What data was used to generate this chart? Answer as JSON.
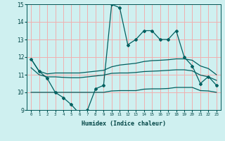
{
  "title": "",
  "xlabel": "Humidex (Indice chaleur)",
  "xlim": [
    -0.5,
    23.5
  ],
  "ylim": [
    9,
    15
  ],
  "yticks": [
    9,
    10,
    11,
    12,
    13,
    14,
    15
  ],
  "xticks": [
    0,
    1,
    2,
    3,
    4,
    5,
    6,
    7,
    8,
    9,
    10,
    11,
    12,
    13,
    14,
    15,
    16,
    17,
    18,
    19,
    20,
    21,
    22,
    23
  ],
  "xtick_labels": [
    "0",
    "1",
    "2",
    "3",
    "4",
    "5",
    "6",
    "7",
    "8",
    "9",
    "10",
    "11",
    "12",
    "13",
    "14",
    "15",
    "16",
    "17",
    "18",
    "19",
    "20",
    "21",
    "22",
    "23"
  ],
  "bg_color": "#cff0f0",
  "grid_color": "#f0b0b0",
  "line_color": "#006060",
  "main_series_x": [
    0,
    1,
    2,
    3,
    4,
    5,
    6,
    7,
    8,
    9,
    10,
    11,
    12,
    13,
    14,
    15,
    16,
    17,
    18,
    19,
    20,
    21,
    22,
    23
  ],
  "main_series_y": [
    11.9,
    11.2,
    10.8,
    10.0,
    9.7,
    9.3,
    8.8,
    9.0,
    10.2,
    10.4,
    15.0,
    14.8,
    12.7,
    13.0,
    13.5,
    13.5,
    13.0,
    13.0,
    13.5,
    12.0,
    11.5,
    10.5,
    10.9,
    10.4
  ],
  "upper_series_x": [
    0,
    1,
    2,
    3,
    4,
    5,
    6,
    7,
    8,
    9,
    10,
    11,
    12,
    13,
    14,
    15,
    16,
    17,
    18,
    19,
    20,
    21,
    22,
    23
  ],
  "upper_series_y": [
    11.9,
    11.2,
    11.05,
    11.1,
    11.1,
    11.1,
    11.1,
    11.15,
    11.2,
    11.25,
    11.45,
    11.55,
    11.6,
    11.65,
    11.75,
    11.8,
    11.82,
    11.85,
    11.9,
    11.9,
    11.82,
    11.5,
    11.35,
    11.0
  ],
  "middle_series_x": [
    0,
    1,
    2,
    3,
    4,
    5,
    6,
    7,
    8,
    9,
    10,
    11,
    12,
    13,
    14,
    15,
    16,
    17,
    18,
    19,
    20,
    21,
    22,
    23
  ],
  "middle_series_y": [
    11.4,
    11.0,
    10.88,
    10.88,
    10.85,
    10.83,
    10.83,
    10.88,
    10.93,
    10.98,
    11.08,
    11.1,
    11.1,
    11.13,
    11.18,
    11.2,
    11.22,
    11.25,
    11.28,
    11.28,
    11.22,
    10.98,
    10.88,
    10.68
  ],
  "lower_series_x": [
    0,
    1,
    2,
    3,
    4,
    5,
    6,
    7,
    8,
    9,
    10,
    11,
    12,
    13,
    14,
    15,
    16,
    17,
    18,
    19,
    20,
    21,
    22,
    23
  ],
  "lower_series_y": [
    10.0,
    10.0,
    10.0,
    10.0,
    10.0,
    10.0,
    10.0,
    10.0,
    10.0,
    10.0,
    10.08,
    10.1,
    10.1,
    10.1,
    10.18,
    10.2,
    10.2,
    10.22,
    10.28,
    10.28,
    10.28,
    10.1,
    10.08,
    10.0
  ]
}
